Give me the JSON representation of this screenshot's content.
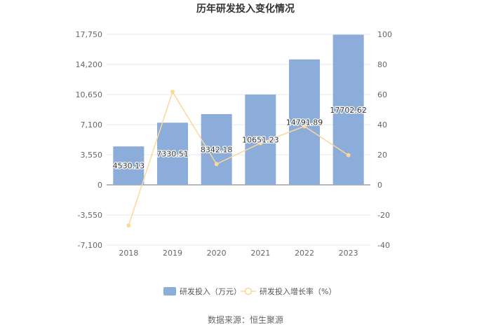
{
  "chart_data": {
    "type": "bar",
    "title": "历年研发投入变化情况",
    "categories": [
      "2018",
      "2019",
      "2020",
      "2021",
      "2022",
      "2023"
    ],
    "series": [
      {
        "name": "研发投入（万元）",
        "type": "bar",
        "axis": "left",
        "color": "#8cadd9",
        "values": [
          4530.13,
          7330.51,
          8342.18,
          10651.23,
          14791.89,
          17702.62
        ],
        "labels": [
          "4530.13",
          "7330.51",
          "8342.18",
          "10651.23",
          "14791.89",
          "17702.62"
        ]
      },
      {
        "name": "研发投入增长率（%）",
        "type": "line",
        "axis": "right",
        "color": "#fcd79a",
        "values": [
          -27,
          61.8,
          13.8,
          27.7,
          38.9,
          19.7
        ]
      }
    ],
    "y_left": {
      "min": -7100,
      "max": 17750,
      "ticks": [
        -7100,
        -3550,
        0,
        3550,
        7100,
        10650,
        14200,
        17750
      ],
      "tick_labels": [
        "-7,100",
        "-3,550",
        "0",
        "3,550",
        "7,100",
        "10,650",
        "14,200",
        "17,750"
      ]
    },
    "y_right": {
      "min": -40,
      "max": 100,
      "ticks": [
        -40,
        -20,
        0,
        20,
        40,
        60,
        80,
        100
      ],
      "tick_labels": [
        "-40",
        "-20",
        "0",
        "20",
        "40",
        "60",
        "80",
        "100"
      ]
    },
    "grid": true,
    "legend_position": "bottom"
  },
  "source": "数据来源：恒生聚源"
}
